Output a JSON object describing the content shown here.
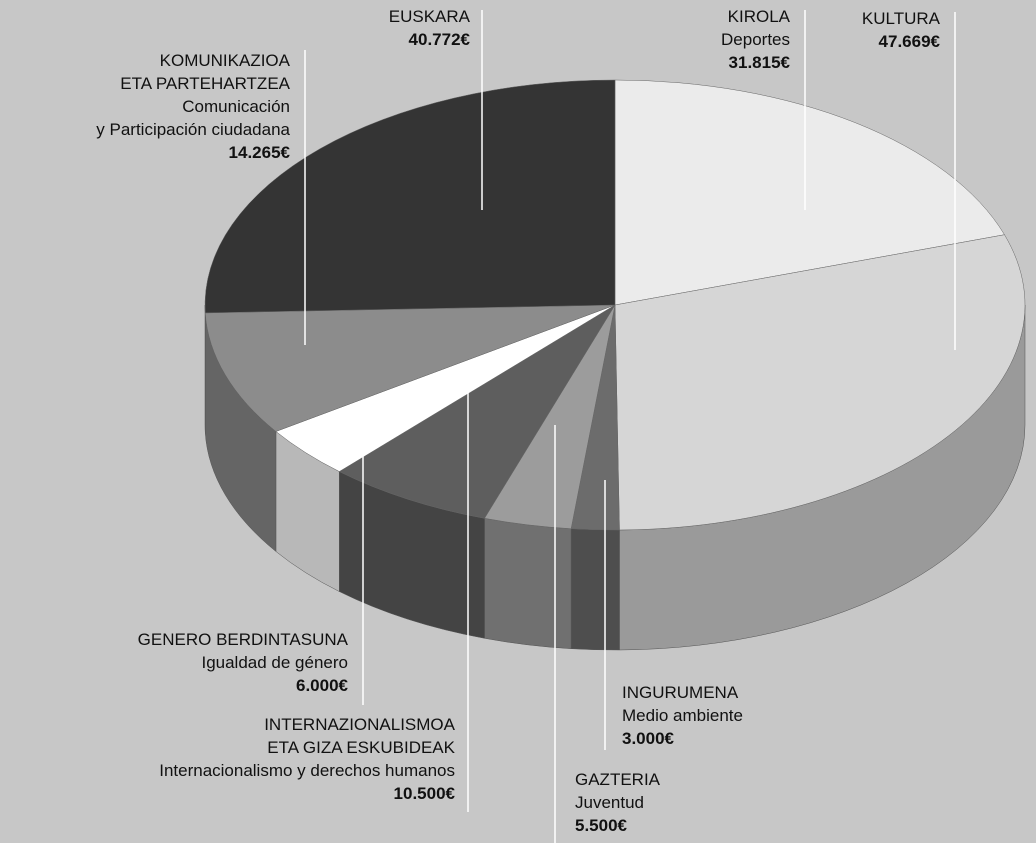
{
  "chart_data": {
    "type": "pie",
    "categories": [
      [
        "KIROLA"
      ],
      [
        "KULTURA"
      ],
      [
        "INGURUMENA"
      ],
      [
        "GAZTERIA"
      ],
      [
        "INTERNAZIONALISMOA",
        "ETA GIZA ESKUBIDEAK"
      ],
      [
        "GENERO BERDINTASUNA"
      ],
      [
        "KOMUNIKAZIOA",
        "ETA PARTEHARTZEA"
      ],
      [
        "EUSKARA"
      ]
    ],
    "translations": [
      [
        "Deportes"
      ],
      [],
      [
        "Medio ambiente"
      ],
      [
        "Juventud"
      ],
      [
        "Internacionalismo y derechos humanos"
      ],
      [
        "Igualdad de género"
      ],
      [
        "Comunicación",
        "y Participación ciudadana"
      ],
      []
    ],
    "values": [
      31815,
      47669,
      3000,
      5500,
      10500,
      6000,
      14265,
      40772
    ],
    "value_labels": [
      "31.815€",
      "47.669€",
      "3.000€",
      "5.500€",
      "10.500€",
      "6.000€",
      "14.265€",
      "40.772€"
    ],
    "colors": [
      "#ebebeb",
      "#d6d6d6",
      "#6c6c6c",
      "#9c9c9c",
      "#5e5e5e",
      "#ffffff",
      "#8c8c8c",
      "#343434"
    ]
  }
}
